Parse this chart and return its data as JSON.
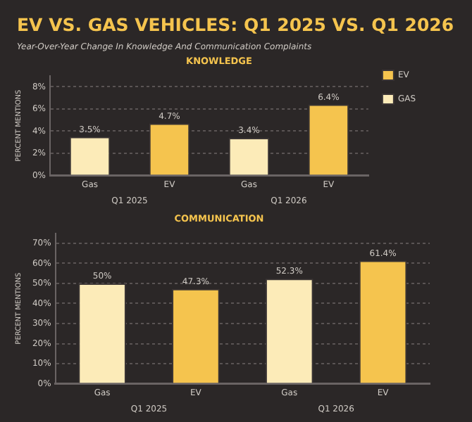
{
  "chart_data": [
    {
      "type": "other",
      "title": "EV VS. GAS VEHICLES: Q1 2025 VS. Q1 2026",
      "subtitle": "Year-Over-Year Change In Knowledge And Communication Complaints"
    },
    {
      "type": "bar",
      "title": "KNOWLEDGE",
      "ylabel": "PERCENT MENTIONS",
      "categories": [
        "Gas",
        "EV",
        "Gas",
        "EV"
      ],
      "series": [
        {
          "name": "EV",
          "color": "#f5c44e",
          "values": [
            null,
            4.7,
            null,
            6.4
          ],
          "value_labels": [
            null,
            "4.7%",
            null,
            "6.4%"
          ]
        },
        {
          "name": "GAS",
          "color": "#fcebb8",
          "values": [
            3.5,
            null,
            3.4,
            null
          ],
          "value_labels": [
            "3.5%",
            null,
            "3.4%",
            null
          ]
        }
      ],
      "annotations": [
        "Q1 2025",
        "Q1 2026"
      ],
      "ylim": [
        0,
        9
      ],
      "yticks": [
        {
          "value": 0,
          "label": "0%"
        },
        {
          "value": 2,
          "label": "2%"
        },
        {
          "value": 4,
          "label": "4%"
        },
        {
          "value": 6,
          "label": "6%"
        },
        {
          "value": 8,
          "label": "8%"
        }
      ],
      "grid": "y",
      "legend": "top right"
    },
    {
      "type": "bar",
      "title": "COMMUNICATION",
      "ylabel": "PERCENT MENTIONS",
      "categories": [
        "Gas",
        "EV",
        "Gas",
        "EV"
      ],
      "series": [
        {
          "color": "#f5c44e",
          "values": [
            null,
            47.3,
            null,
            61.4
          ],
          "value_labels": [
            null,
            "47.3%",
            null,
            "61.4%"
          ]
        },
        {
          "color": "#fcebb8",
          "values": [
            50,
            null,
            52.3,
            null
          ],
          "value_labels": [
            "50%",
            null,
            "52.3%",
            null
          ]
        }
      ],
      "annotations": [
        "Q1 2025",
        "Q1 2026"
      ],
      "ylim": [
        0,
        75
      ],
      "yticks": [
        {
          "value": 0,
          "label": "0%"
        },
        {
          "value": 10,
          "label": "10%"
        },
        {
          "value": 20,
          "label": "20%"
        },
        {
          "value": 30,
          "label": "30%"
        },
        {
          "value": 40,
          "label": "40%"
        },
        {
          "value": 50,
          "label": "50%"
        },
        {
          "value": 60,
          "label": "60%"
        },
        {
          "value": 70,
          "label": "70%"
        }
      ],
      "grid": "y"
    }
  ]
}
